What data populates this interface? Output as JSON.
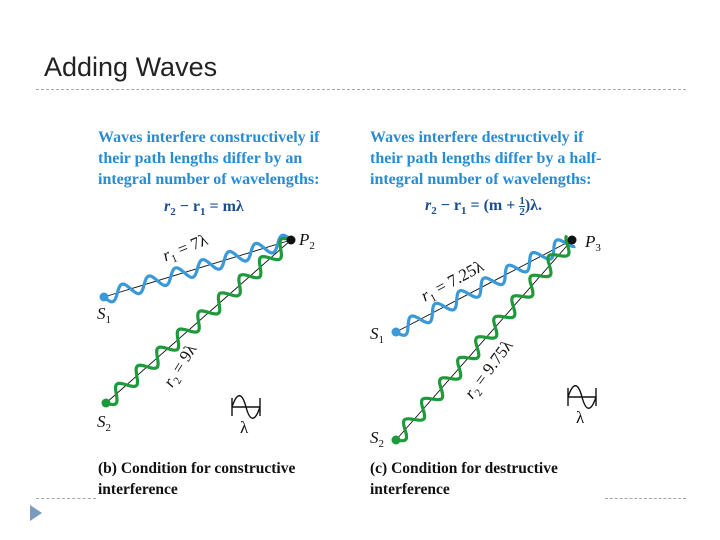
{
  "slide": {
    "title": "Adding Waves"
  },
  "left_panel": {
    "heading_lines": [
      "Waves interfere constructively if",
      "their path lengths differ by an",
      "integral number of wavelengths:"
    ],
    "equation": {
      "lhs": "r",
      "sub2": "2",
      "minus": " − r",
      "sub1": "1",
      "rhs": " = mλ"
    },
    "wave1_label": "r",
    "wave1_sub": "1",
    "wave1_value": " = 7λ",
    "wave2_label": "r",
    "wave2_sub": "2",
    "wave2_value": " = 9λ",
    "source1": "S",
    "source1_sub": "1",
    "source2": "S",
    "source2_sub": "2",
    "point": "P",
    "point_sub": "2",
    "lambda": "λ",
    "caption_lines": [
      "(b) Condition for constructive",
      "interference"
    ],
    "colors": {
      "wave1": "#3a9ad9",
      "wave2": "#1f9a3a",
      "point": "#111111"
    }
  },
  "right_panel": {
    "heading_lines": [
      "Waves interfere destructively if",
      "their path lengths differ by a half-",
      "integral number of wavelengths:"
    ],
    "equation": {
      "lhs": "r",
      "sub2": "2",
      "minus": " − r",
      "sub1": "1",
      "mid": " = (m + ",
      "frac_num": "1",
      "frac_den": "2",
      "rhs": ")λ."
    },
    "wave1_label": "r",
    "wave1_sub": "1",
    "wave1_value": " = 7.25λ",
    "wave2_label": "r",
    "wave2_sub": "2",
    "wave2_value": " = 9.75λ",
    "source1": "S",
    "source1_sub": "1",
    "source2": "S",
    "source2_sub": "2",
    "point": "P",
    "point_sub": "3",
    "lambda": "λ",
    "caption_lines": [
      "(c) Condition for destructive",
      "interference"
    ]
  }
}
